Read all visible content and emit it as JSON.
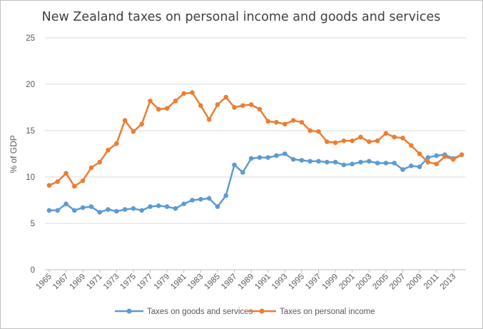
{
  "chart_data": {
    "type": "line",
    "title": "New Zealand taxes on personal income and goods and services",
    "xlabel": "",
    "ylabel": "% of GDP",
    "ylim": [
      0,
      25
    ],
    "yticks": [
      0,
      5,
      10,
      15,
      20,
      25
    ],
    "x": [
      1965,
      1966,
      1967,
      1968,
      1969,
      1970,
      1971,
      1972,
      1973,
      1974,
      1975,
      1976,
      1977,
      1978,
      1979,
      1980,
      1981,
      1982,
      1983,
      1984,
      1985,
      1986,
      1987,
      1988,
      1989,
      1990,
      1991,
      1992,
      1993,
      1994,
      1995,
      1996,
      1997,
      1998,
      1999,
      2000,
      2001,
      2002,
      2003,
      2004,
      2005,
      2006,
      2007,
      2008,
      2009,
      2010,
      2011,
      2012,
      2013,
      2014
    ],
    "xtick_labels": [
      "1965",
      "1967",
      "1969",
      "1971",
      "1973",
      "1975",
      "1977",
      "1979",
      "1981",
      "1983",
      "1985",
      "1987",
      "1989",
      "1991",
      "1993",
      "1995",
      "1997",
      "1999",
      "2001",
      "2003",
      "2005",
      "2007",
      "2009",
      "2011",
      "2013"
    ],
    "grid": true,
    "legend_position": "bottom",
    "series": [
      {
        "name": "Taxes on goods and services",
        "color": "#5b9bd5",
        "values": [
          6.4,
          6.4,
          7.1,
          6.4,
          6.7,
          6.8,
          6.2,
          6.5,
          6.3,
          6.5,
          6.6,
          6.4,
          6.8,
          6.9,
          6.8,
          6.6,
          7.1,
          7.5,
          7.6,
          7.7,
          6.8,
          8.0,
          11.3,
          10.5,
          12.0,
          12.1,
          12.1,
          12.3,
          12.5,
          11.9,
          11.8,
          11.7,
          11.7,
          11.6,
          11.6,
          11.3,
          11.4,
          11.6,
          11.7,
          11.5,
          11.5,
          11.5,
          10.8,
          11.2,
          11.1,
          12.1,
          12.3,
          12.4,
          12.0,
          12.4
        ]
      },
      {
        "name": "Taxes on personal income",
        "color": "#ed7d31",
        "values": [
          9.1,
          9.5,
          10.4,
          9.0,
          9.6,
          11.0,
          11.6,
          12.9,
          13.6,
          16.1,
          14.9,
          15.7,
          18.2,
          17.3,
          17.4,
          18.2,
          19.0,
          19.1,
          17.7,
          16.2,
          17.8,
          18.6,
          17.5,
          17.7,
          17.8,
          17.3,
          16.0,
          15.9,
          15.7,
          16.1,
          15.9,
          15.0,
          14.9,
          13.8,
          13.7,
          13.9,
          13.9,
          14.3,
          13.8,
          13.9,
          14.7,
          14.3,
          14.2,
          13.4,
          12.5,
          11.6,
          11.4,
          12.2,
          11.9,
          12.4
        ]
      }
    ]
  }
}
